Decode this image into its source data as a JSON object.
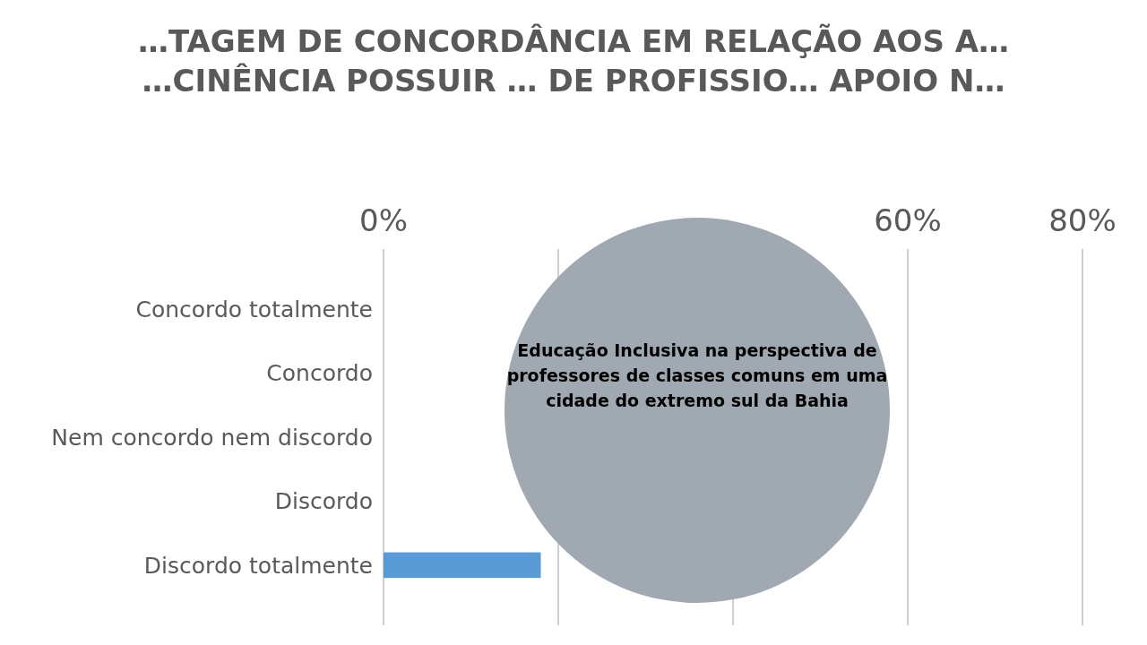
{
  "chart_data": {
    "type": "bar",
    "orientation": "horizontal",
    "title": "…TAGEM DE CONCORDÂNCIA EM RELAÇÃO AOS A… …CINÊNCIA POSSUIR … DE PROFISSIO… APOIO N…",
    "categories": [
      "Concordo totalmente",
      "Concordo",
      "Nem concordo nem discordo",
      "Discordo",
      "Discordo totalmente"
    ],
    "values": [
      null,
      null,
      null,
      null,
      18
    ],
    "color": "#5b9bd5",
    "xlim": [
      0,
      80
    ],
    "xticks": [
      {
        "value": 0,
        "label": "0%"
      },
      {
        "value": 20,
        "label": null
      },
      {
        "value": 40,
        "label": null
      },
      {
        "value": 60,
        "label": "60%"
      },
      {
        "value": 80,
        "label": "80%"
      }
    ],
    "grid": "x",
    "annotations": [
      "Educação Inclusiva na perspectiva de professores de classes comuns em uma cidade do extremo sul da Bahia"
    ]
  }
}
